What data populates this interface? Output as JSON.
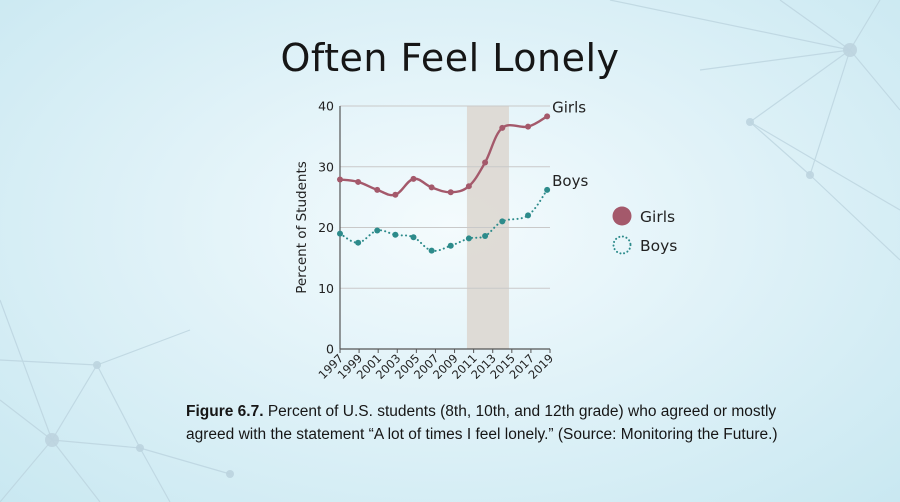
{
  "title": "Often Feel Lonely",
  "caption": {
    "label": "Figure 6.7.",
    "text": " Percent of U.S. students (8th, 10th, and 12th grade) who agreed or mostly agreed with the statement “A lot of times I feel lonely.” (Source: Monitoring the Future.)"
  },
  "legend": {
    "girls": "Girls",
    "boys": "Boys"
  },
  "colors": {
    "girls": "#a4596b",
    "boys": "#2d8b8b",
    "highlight": "#dcd6cf"
  },
  "chart_data": {
    "type": "line",
    "title": "Often Feel Lonely",
    "xlabel": "",
    "ylabel": "Percent of Students",
    "ylim": [
      0,
      40
    ],
    "yticks": [
      0,
      10,
      20,
      30,
      40
    ],
    "xlim": [
      1997,
      2019
    ],
    "xticks": [
      "1997",
      "1999",
      "2001",
      "2003",
      "2005",
      "2007",
      "2009",
      "2011",
      "2013",
      "2015",
      "2017",
      "2019"
    ],
    "grid": "horizontal",
    "highlight_band": [
      2010.3,
      2014.7
    ],
    "legend_position": "right",
    "series": [
      {
        "name": "Girls",
        "style": "solid",
        "end_label": "Girls",
        "x": [
          1997,
          1998.9,
          2000.9,
          2002.8,
          2004.7,
          2006.6,
          2008.6,
          2010.5,
          2012.2,
          2014.0,
          2016.7,
          2018.7
        ],
        "y": [
          27.9,
          27.5,
          26.2,
          25.4,
          28.0,
          26.6,
          25.8,
          26.8,
          30.7,
          36.4,
          36.6,
          38.3
        ]
      },
      {
        "name": "Boys",
        "style": "dotted",
        "end_label": "Boys",
        "x": [
          1997,
          1998.9,
          2000.9,
          2002.8,
          2004.7,
          2006.6,
          2008.6,
          2010.5,
          2012.2,
          2014.0,
          2016.7,
          2018.7
        ],
        "y": [
          19.0,
          17.5,
          19.5,
          18.8,
          18.4,
          16.2,
          17.0,
          18.2,
          18.6,
          21.0,
          22.0,
          26.2
        ]
      }
    ]
  }
}
